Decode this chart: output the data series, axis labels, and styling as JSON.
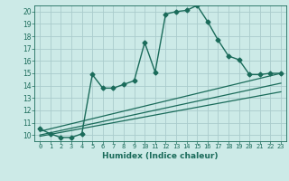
{
  "background_color": "#cceae7",
  "grid_color": "#aacccc",
  "line_color": "#1a6b5a",
  "x_label": "Humidex (Indice chaleur)",
  "xlim": [
    -0.5,
    23.5
  ],
  "ylim": [
    9.5,
    20.5
  ],
  "yticks": [
    10,
    11,
    12,
    13,
    14,
    15,
    16,
    17,
    18,
    19,
    20
  ],
  "xticks": [
    0,
    1,
    2,
    3,
    4,
    5,
    6,
    7,
    8,
    9,
    10,
    11,
    12,
    13,
    14,
    15,
    16,
    17,
    18,
    19,
    20,
    21,
    22,
    23
  ],
  "curve_x": [
    0,
    1,
    2,
    3,
    4,
    5,
    6,
    7,
    8,
    9,
    10,
    11,
    12,
    13,
    14,
    15,
    16,
    17,
    18,
    19,
    20,
    21,
    22,
    23
  ],
  "curve_y": [
    10.5,
    10.1,
    9.8,
    9.8,
    10.1,
    14.9,
    13.8,
    13.8,
    14.1,
    14.4,
    17.5,
    15.1,
    19.8,
    20.0,
    20.1,
    20.5,
    19.2,
    17.7,
    16.4,
    16.1,
    14.9,
    14.9,
    15.0,
    15.0
  ],
  "trend1_x": [
    0,
    23
  ],
  "trend1_y": [
    10.3,
    15.0
  ],
  "trend2_x": [
    0,
    23
  ],
  "trend2_y": [
    10.0,
    14.2
  ],
  "trend3_x": [
    0,
    23
  ],
  "trend3_y": [
    9.9,
    13.5
  ]
}
